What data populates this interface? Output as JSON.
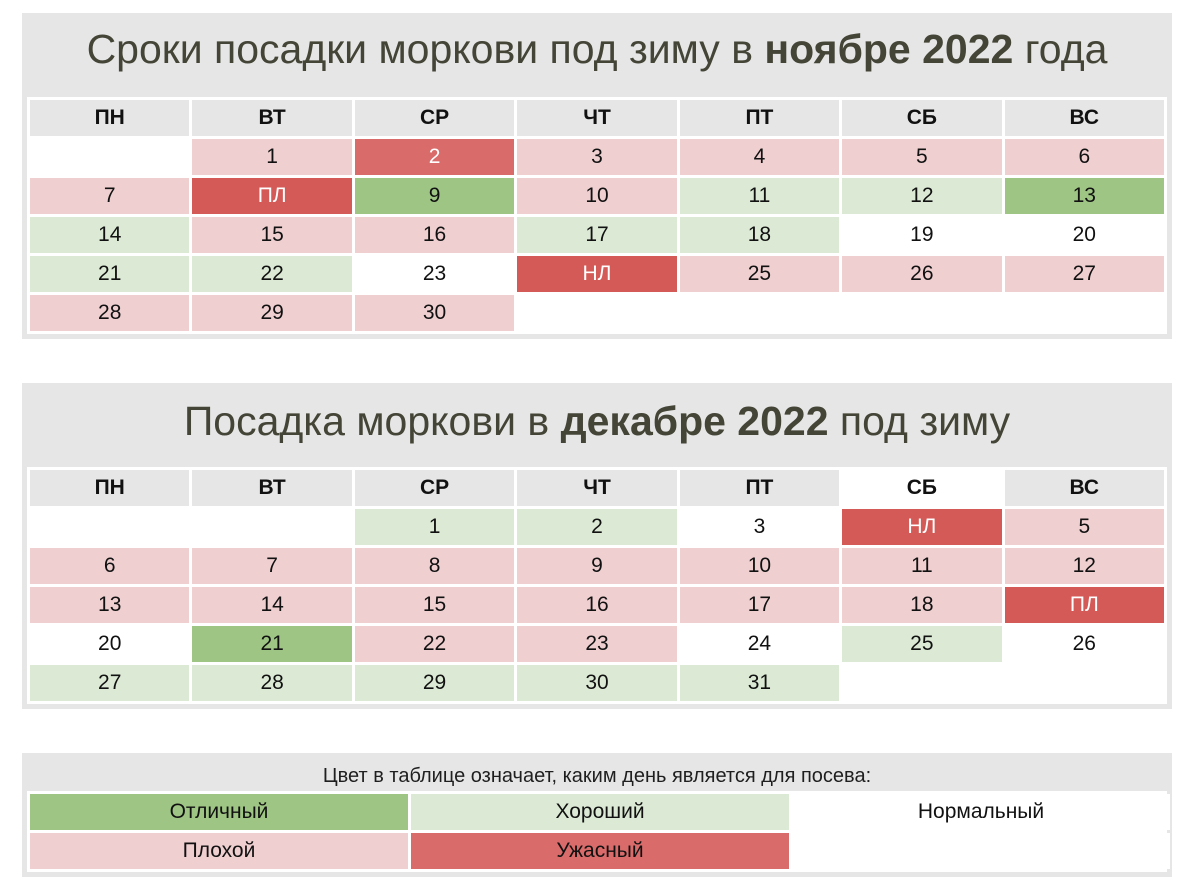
{
  "november": {
    "title_prefix": "Сроки посадки моркови под зиму в ",
    "title_bold": "ноябре 2022",
    "title_suffix": " года",
    "weekdays": [
      "ПН",
      "ВТ",
      "СР",
      "ЧТ",
      "ПТ",
      "СБ",
      "ВС"
    ],
    "cells": [
      {
        "text": "",
        "status": "empty"
      },
      {
        "text": "1",
        "status": "bad"
      },
      {
        "text": "2",
        "status": "terrible2"
      },
      {
        "text": "3",
        "status": "bad"
      },
      {
        "text": "4",
        "status": "bad"
      },
      {
        "text": "5",
        "status": "bad"
      },
      {
        "text": "6",
        "status": "bad"
      },
      {
        "text": "7",
        "status": "bad"
      },
      {
        "text": "ПЛ",
        "status": "terrible"
      },
      {
        "text": "9",
        "status": "excellent"
      },
      {
        "text": "10",
        "status": "bad"
      },
      {
        "text": "11",
        "status": "good"
      },
      {
        "text": "12",
        "status": "good"
      },
      {
        "text": "13",
        "status": "excellent"
      },
      {
        "text": "14",
        "status": "good"
      },
      {
        "text": "15",
        "status": "bad"
      },
      {
        "text": "16",
        "status": "bad"
      },
      {
        "text": "17",
        "status": "good"
      },
      {
        "text": "18",
        "status": "good"
      },
      {
        "text": "19",
        "status": "normal"
      },
      {
        "text": "20",
        "status": "normal"
      },
      {
        "text": "21",
        "status": "good"
      },
      {
        "text": "22",
        "status": "good"
      },
      {
        "text": "23",
        "status": "normal"
      },
      {
        "text": "НЛ",
        "status": "terrible"
      },
      {
        "text": "25",
        "status": "bad"
      },
      {
        "text": "26",
        "status": "bad"
      },
      {
        "text": "27",
        "status": "bad"
      },
      {
        "text": "28",
        "status": "bad"
      },
      {
        "text": "29",
        "status": "bad"
      },
      {
        "text": "30",
        "status": "bad"
      },
      {
        "text": "",
        "status": "empty"
      },
      {
        "text": "",
        "status": "empty"
      },
      {
        "text": "",
        "status": "empty"
      },
      {
        "text": "",
        "status": "empty"
      }
    ]
  },
  "december": {
    "title_prefix": "Посадка моркови в ",
    "title_bold": "декабре 2022",
    "title_suffix": " под зиму",
    "weekdays": [
      "ПН",
      "ВТ",
      "СР",
      "ЧТ",
      "ПТ",
      "СБ",
      "ВС"
    ],
    "cells": [
      {
        "text": "",
        "status": "empty"
      },
      {
        "text": "",
        "status": "empty"
      },
      {
        "text": "1",
        "status": "good"
      },
      {
        "text": "2",
        "status": "good"
      },
      {
        "text": "3",
        "status": "normal"
      },
      {
        "text": "НЛ",
        "status": "terrible"
      },
      {
        "text": "5",
        "status": "bad"
      },
      {
        "text": "6",
        "status": "bad"
      },
      {
        "text": "7",
        "status": "bad"
      },
      {
        "text": "8",
        "status": "bad"
      },
      {
        "text": "9",
        "status": "bad"
      },
      {
        "text": "10",
        "status": "bad"
      },
      {
        "text": "11",
        "status": "bad"
      },
      {
        "text": "12",
        "status": "bad"
      },
      {
        "text": "13",
        "status": "bad"
      },
      {
        "text": "14",
        "status": "bad"
      },
      {
        "text": "15",
        "status": "bad"
      },
      {
        "text": "16",
        "status": "bad"
      },
      {
        "text": "17",
        "status": "bad"
      },
      {
        "text": "18",
        "status": "bad"
      },
      {
        "text": "ПЛ",
        "status": "terrible"
      },
      {
        "text": "20",
        "status": "normal"
      },
      {
        "text": "21",
        "status": "excellent"
      },
      {
        "text": "22",
        "status": "bad"
      },
      {
        "text": "23",
        "status": "bad"
      },
      {
        "text": "24",
        "status": "normal"
      },
      {
        "text": "25",
        "status": "good"
      },
      {
        "text": "26",
        "status": "normal"
      },
      {
        "text": "27",
        "status": "good"
      },
      {
        "text": "28",
        "status": "good"
      },
      {
        "text": "29",
        "status": "good"
      },
      {
        "text": "30",
        "status": "good"
      },
      {
        "text": "31",
        "status": "good"
      },
      {
        "text": "",
        "status": "empty"
      },
      {
        "text": "",
        "status": "empty"
      }
    ]
  },
  "legend": {
    "title": "Цвет в таблице означает, каким день является для посева:",
    "items": [
      {
        "label": "Отличный",
        "status": "excellent"
      },
      {
        "label": "Хороший",
        "status": "good"
      },
      {
        "label": "Нормальный",
        "status": "normal"
      },
      {
        "label": "Плохой",
        "status": "bad"
      },
      {
        "label": "Ужасный",
        "status": "terrible2"
      },
      {
        "label": "",
        "status": "empty"
      }
    ]
  },
  "colors": {
    "excellent": "#9ec583",
    "good": "#dcead5",
    "normal": "#ffffff",
    "bad": "#efcfd0",
    "terrible": "#d35a57",
    "terrible_light": "#d96c6b",
    "panel_bg": "#e6e6e6",
    "title_color": "#444437"
  }
}
